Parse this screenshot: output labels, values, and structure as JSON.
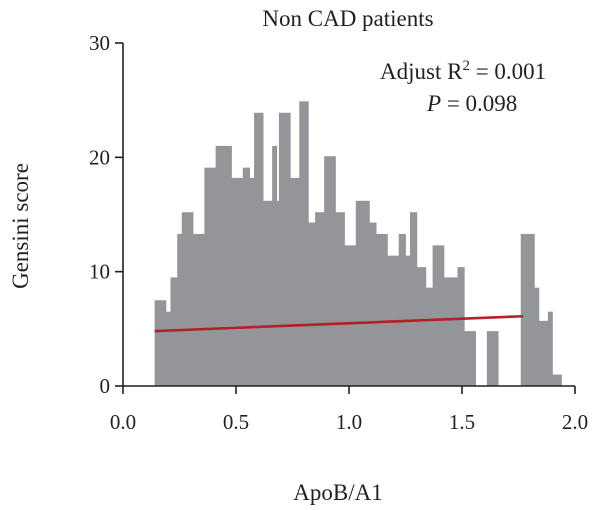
{
  "chart_data": {
    "type": "area",
    "title": "Non CAD patients",
    "xlabel": "ApoB/A1",
    "ylabel": "Gensini score",
    "xlim": [
      0.0,
      2.0
    ],
    "ylim": [
      0,
      30
    ],
    "xticks": [
      "0.0",
      "0.5",
      "1.0",
      "1.5",
      "2.0"
    ],
    "yticks": [
      "0",
      "10",
      "20",
      "30"
    ],
    "grid": false,
    "annotation": {
      "line1_prefix": "Adjust R",
      "line1_sup": "2",
      "line1_suffix": " = 0.001",
      "line2_var": "P",
      "line2_suffix": " = 0.098"
    },
    "colors": {
      "fill": "#939598",
      "fit": "#b2202a",
      "axis": "#231f20"
    },
    "steps": [
      [
        0.14,
        0.19,
        7.5
      ],
      [
        0.19,
        0.21,
        6.5
      ],
      [
        0.21,
        0.24,
        9.5
      ],
      [
        0.24,
        0.26,
        13.3
      ],
      [
        0.26,
        0.31,
        15.2
      ],
      [
        0.31,
        0.36,
        13.3
      ],
      [
        0.36,
        0.41,
        19.1
      ],
      [
        0.41,
        0.48,
        21.0
      ],
      [
        0.48,
        0.53,
        18.2
      ],
      [
        0.53,
        0.56,
        19.1
      ],
      [
        0.56,
        0.58,
        18.2
      ],
      [
        0.58,
        0.62,
        23.9
      ],
      [
        0.62,
        0.66,
        16.2
      ],
      [
        0.66,
        0.68,
        21.0
      ],
      [
        0.68,
        0.69,
        16.2
      ],
      [
        0.69,
        0.74,
        23.9
      ],
      [
        0.74,
        0.78,
        18.2
      ],
      [
        0.78,
        0.82,
        24.9
      ],
      [
        0.82,
        0.85,
        14.3
      ],
      [
        0.85,
        0.89,
        15.2
      ],
      [
        0.89,
        0.94,
        20.1
      ],
      [
        0.94,
        0.98,
        15.2
      ],
      [
        0.98,
        1.03,
        12.3
      ],
      [
        1.03,
        1.09,
        16.2
      ],
      [
        1.09,
        1.12,
        14.3
      ],
      [
        1.12,
        1.17,
        13.3
      ],
      [
        1.17,
        1.22,
        11.4
      ],
      [
        1.22,
        1.25,
        13.3
      ],
      [
        1.25,
        1.27,
        11.4
      ],
      [
        1.27,
        1.3,
        15.2
      ],
      [
        1.3,
        1.34,
        10.4
      ],
      [
        1.34,
        1.37,
        8.6
      ],
      [
        1.37,
        1.42,
        12.3
      ],
      [
        1.42,
        1.48,
        9.5
      ],
      [
        1.48,
        1.51,
        10.4
      ],
      [
        1.51,
        1.56,
        4.8
      ],
      [
        1.56,
        1.61,
        0
      ],
      [
        1.61,
        1.66,
        4.8
      ],
      [
        1.66,
        1.76,
        0
      ],
      [
        1.76,
        1.82,
        13.3
      ],
      [
        1.82,
        1.84,
        8.6
      ],
      [
        1.84,
        1.88,
        5.7
      ],
      [
        1.88,
        1.9,
        6.5
      ],
      [
        1.9,
        1.94,
        1.0
      ]
    ],
    "fit_line": {
      "x": [
        0.14,
        1.77
      ],
      "y": [
        4.8,
        6.1
      ]
    }
  }
}
